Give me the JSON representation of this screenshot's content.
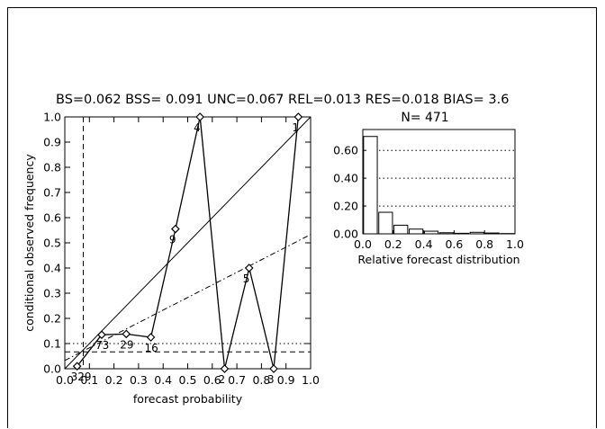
{
  "header": {
    "stats_line": "BS=0.062 BSS= 0.091 UNC=0.067 REL=0.013 RES=0.018 BIAS= 3.6"
  },
  "chart_data": [
    {
      "type": "line",
      "name": "reliability-diagram",
      "xlabel": "forecast probability",
      "ylabel": "conditional observed frequency",
      "xlim": [
        0.0,
        1.0
      ],
      "ylim": [
        0.0,
        1.0
      ],
      "xticks": [
        "0.0",
        "0.1",
        "0.2",
        "0.3",
        "0.4",
        "0.5",
        "0.6",
        "0.7",
        "0.8",
        "0.9",
        "1.0"
      ],
      "yticks": [
        "0.0",
        "0.1",
        "0.2",
        "0.3",
        "0.4",
        "0.5",
        "0.6",
        "0.7",
        "0.8",
        "0.9",
        "1.0"
      ],
      "series": [
        {
          "style": "solid-with-diamonds",
          "points": [
            {
              "x": 0.05,
              "y": 0.01,
              "label": "329"
            },
            {
              "x": 0.15,
              "y": 0.135,
              "label": "73"
            },
            {
              "x": 0.25,
              "y": 0.138,
              "label": "29"
            },
            {
              "x": 0.35,
              "y": 0.125,
              "label": "16"
            },
            {
              "x": 0.45,
              "y": 0.555,
              "label": "9"
            },
            {
              "x": 0.55,
              "y": 1.0,
              "label": "4"
            },
            {
              "x": 0.65,
              "y": 0.0,
              "label": "2"
            },
            {
              "x": 0.75,
              "y": 0.4,
              "label": "5"
            },
            {
              "x": 0.85,
              "y": 0.0,
              "label": "3"
            },
            {
              "x": 0.95,
              "y": 1.0,
              "label": "1"
            }
          ]
        }
      ],
      "reference_lines": {
        "perfect_reliability": {
          "style": "solid",
          "from": [
            0.0,
            0.0
          ],
          "to": [
            1.0,
            1.0
          ]
        },
        "no_skill": {
          "style": "dash-dot",
          "from": [
            0.0,
            0.033
          ],
          "to": [
            1.0,
            0.533
          ]
        },
        "climatology_y": {
          "style": "dotted",
          "y": 0.1
        },
        "horizontal_dashed": {
          "style": "dashed",
          "y": 0.067
        },
        "vertical_dashed": {
          "style": "dashed",
          "x": 0.075
        }
      }
    },
    {
      "type": "bar",
      "name": "forecast-distribution",
      "title": "N=  471",
      "xlabel": "Relative forecast distribution",
      "xlim": [
        0.0,
        1.0
      ],
      "ylim": [
        0.0,
        0.75
      ],
      "xticks": [
        "0.0",
        "0.2",
        "0.4",
        "0.6",
        "0.8",
        "1.0"
      ],
      "yticks": [
        "0.00",
        "0.20",
        "0.40",
        "0.60"
      ],
      "grid": "dotted horizontal at 0.20, 0.40, 0.60",
      "categories": [
        0.05,
        0.15,
        0.25,
        0.35,
        0.45,
        0.55,
        0.65,
        0.75,
        0.85,
        0.95
      ],
      "values": [
        0.7,
        0.155,
        0.062,
        0.034,
        0.019,
        0.008,
        0.004,
        0.011,
        0.006,
        0.002
      ]
    }
  ]
}
